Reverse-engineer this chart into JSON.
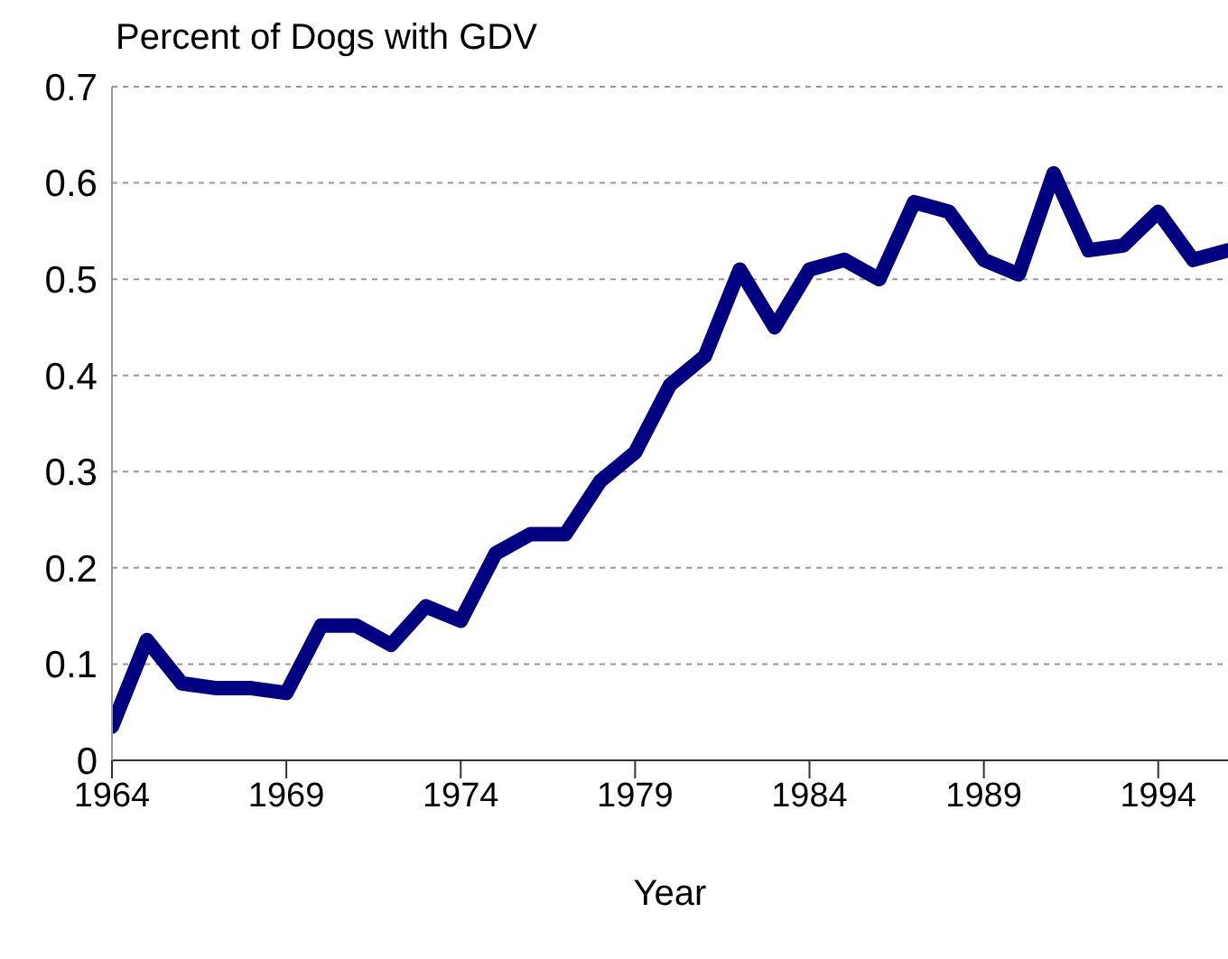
{
  "chart_data": {
    "type": "line",
    "title": "Percent of Dogs with GDV",
    "xlabel": "Year",
    "x": [
      1964,
      1965,
      1966,
      1967,
      1968,
      1969,
      1970,
      1971,
      1972,
      1973,
      1974,
      1975,
      1976,
      1977,
      1978,
      1979,
      1980,
      1981,
      1982,
      1983,
      1984,
      1985,
      1986,
      1987,
      1988,
      1989,
      1990,
      1991,
      1992,
      1993,
      1994,
      1995,
      1996
    ],
    "series": [
      {
        "color": "#000080",
        "values": [
          0.035,
          0.125,
          0.08,
          0.075,
          0.075,
          0.07,
          0.14,
          0.14,
          0.12,
          0.16,
          0.145,
          0.215,
          0.235,
          0.235,
          0.29,
          0.32,
          0.39,
          0.42,
          0.51,
          0.45,
          0.51,
          0.52,
          0.5,
          0.58,
          0.57,
          0.52,
          0.505,
          0.61,
          0.53,
          0.535,
          0.57,
          0.52,
          0.53
        ]
      }
    ],
    "xlim": [
      1964,
      1996
    ],
    "xticks": [
      1964,
      1969,
      1974,
      1979,
      1984,
      1989,
      1994
    ],
    "ylim": [
      0,
      0.7
    ],
    "yticks": [
      0,
      0.1,
      0.2,
      0.3,
      0.4,
      0.5,
      0.6,
      0.7
    ],
    "grid": "y",
    "legend": false,
    "marker": "none",
    "line_style": "solid"
  }
}
